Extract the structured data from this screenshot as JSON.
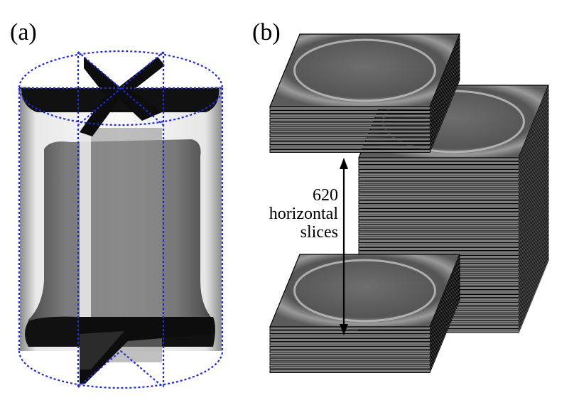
{
  "panels": {
    "a": {
      "label": "(a)"
    },
    "b": {
      "label": "(b)"
    }
  },
  "annotation": {
    "count": "620",
    "line1": "horizontal",
    "line2": "slices"
  },
  "colors": {
    "outline": "#1f2bd6",
    "slice_fill": "#7d7d7d",
    "slice_dark": "#5a5a5a",
    "slice_edge": "#000000",
    "ring": "#bdbdbd"
  }
}
